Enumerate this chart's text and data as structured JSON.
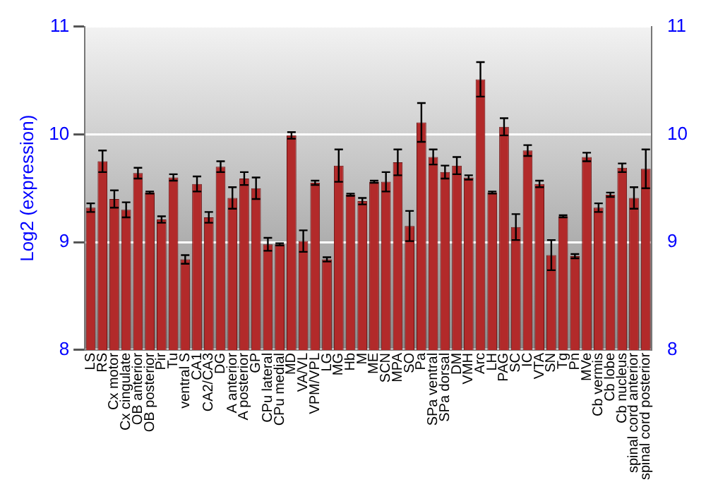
{
  "chart_data": {
    "type": "bar",
    "ylabel": "Log2 (expression)",
    "categories": [
      "LS",
      "RS",
      "Cx motor",
      "Cx cingulate",
      "OB anterior",
      "OB posterior",
      "Pir",
      "Tu",
      "ventral S",
      "CA1",
      "CA2/CA3",
      "DG",
      "A anterior",
      "A posterior",
      "GP",
      "CPu lateral",
      "CPu medial",
      "MD",
      "VA/VL",
      "VPM/VPL",
      "LG",
      "MG",
      "Hb",
      "M",
      "ME",
      "SCN",
      "MPA",
      "SO",
      "Pa",
      "SPa ventral",
      "SPa dorsal",
      "DM",
      "VMH",
      "Arc",
      "LH",
      "PAG",
      "SC",
      "IC",
      "VTA",
      "SN",
      "Tg",
      "Pn",
      "MVe",
      "Cb vermis",
      "Cb lobe",
      "Cb nucleus",
      "spinal cord anterior",
      "spinal cord posterior"
    ],
    "series": [
      {
        "color": "#b22a2a",
        "values": [
          9.32,
          9.75,
          9.4,
          9.3,
          9.64,
          9.46,
          9.21,
          9.6,
          8.84,
          9.54,
          9.23,
          9.7,
          9.41,
          9.59,
          9.5,
          8.98,
          8.98,
          9.99,
          9.01,
          9.55,
          8.84,
          9.71,
          9.44,
          9.38,
          9.56,
          9.56,
          9.74,
          9.15,
          10.11,
          9.79,
          9.65,
          9.71,
          9.6,
          10.51,
          9.46,
          10.07,
          9.14,
          9.85,
          9.54,
          8.88,
          9.24,
          8.87,
          9.79,
          9.32,
          9.44,
          9.69,
          9.41,
          9.68
        ],
        "errors": [
          0.04,
          0.1,
          0.08,
          0.07,
          0.05,
          0.01,
          0.03,
          0.03,
          0.04,
          0.07,
          0.05,
          0.05,
          0.1,
          0.06,
          0.1,
          0.06,
          0.01,
          0.03,
          0.1,
          0.02,
          0.02,
          0.15,
          0.01,
          0.03,
          0.01,
          0.09,
          0.12,
          0.14,
          0.18,
          0.07,
          0.06,
          0.08,
          0.02,
          0.16,
          0.01,
          0.08,
          0.12,
          0.05,
          0.03,
          0.14,
          0.01,
          0.02,
          0.04,
          0.04,
          0.02,
          0.04,
          0.1,
          0.18
        ]
      }
    ],
    "ylim": [
      8,
      11
    ],
    "yticks": [
      8,
      9,
      10,
      11
    ],
    "y2lim": [
      8,
      11
    ],
    "y2ticks": [
      8,
      9,
      10,
      11
    ],
    "grid": "y",
    "legend": false
  }
}
